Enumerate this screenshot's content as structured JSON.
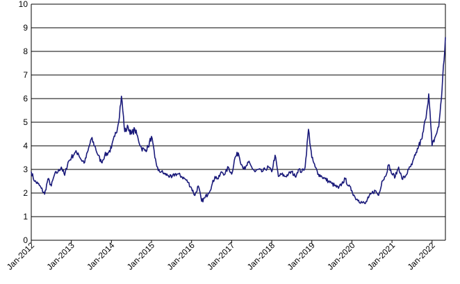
{
  "chart_data": {
    "type": "line",
    "title": "",
    "xlabel": "",
    "ylabel": "",
    "ylim": [
      0,
      10
    ],
    "yticks": [
      0,
      1,
      2,
      3,
      4,
      5,
      6,
      7,
      8,
      9,
      10
    ],
    "xlim": [
      "2012-01",
      "2022-05"
    ],
    "xticks": [
      "Jan-2012",
      "Jan-2013",
      "Jan-2014",
      "Jan-2015",
      "Jan-2016",
      "Jan-2017",
      "Jan-2018",
      "Jan-2019",
      "Jan-2020",
      "Jan-2021",
      "Jan-2022"
    ],
    "grid": "horizontal",
    "legend": "none",
    "colors": {
      "line": "#1a1a7a",
      "grid": "#000000",
      "axis": "#000000"
    },
    "series": [
      {
        "x": [
          "2012-01",
          "2012-02",
          "2012-03",
          "2012-04",
          "2012-05",
          "2012-06",
          "2012-07",
          "2012-08",
          "2012-09",
          "2012-10",
          "2012-11",
          "2012-12",
          "2013-01",
          "2013-02",
          "2013-03",
          "2013-04",
          "2013-05",
          "2013-06",
          "2013-07",
          "2013-08",
          "2013-09",
          "2013-10",
          "2013-11",
          "2013-12",
          "2014-01",
          "2014-02",
          "2014-03",
          "2014-04",
          "2014-05",
          "2014-06",
          "2014-07",
          "2014-08",
          "2014-09",
          "2014-10",
          "2014-11",
          "2014-12",
          "2015-01",
          "2015-02",
          "2015-03",
          "2015-04",
          "2015-05",
          "2015-06",
          "2015-07",
          "2015-08",
          "2015-09",
          "2015-10",
          "2015-11",
          "2015-12",
          "2016-01",
          "2016-02",
          "2016-03",
          "2016-04",
          "2016-05",
          "2016-06",
          "2016-07",
          "2016-08",
          "2016-09",
          "2016-10",
          "2016-11",
          "2016-12",
          "2017-01",
          "2017-02",
          "2017-03",
          "2017-04",
          "2017-05",
          "2017-06",
          "2017-07",
          "2017-08",
          "2017-09",
          "2017-10",
          "2017-11",
          "2017-12",
          "2018-01",
          "2018-02",
          "2018-03",
          "2018-04",
          "2018-05",
          "2018-06",
          "2018-07",
          "2018-08",
          "2018-09",
          "2018-10",
          "2018-11",
          "2018-12",
          "2019-01",
          "2019-02",
          "2019-03",
          "2019-04",
          "2019-05",
          "2019-06",
          "2019-07",
          "2019-08",
          "2019-09",
          "2019-10",
          "2019-11",
          "2019-12",
          "2020-01",
          "2020-02",
          "2020-03",
          "2020-04",
          "2020-05",
          "2020-06",
          "2020-07",
          "2020-08",
          "2020-09",
          "2020-10",
          "2020-11",
          "2020-12",
          "2021-01",
          "2021-02",
          "2021-03",
          "2021-04",
          "2021-05",
          "2021-06",
          "2021-07",
          "2021-08",
          "2021-09",
          "2021-10",
          "2021-11",
          "2021-12",
          "2022-01",
          "2022-02",
          "2022-03",
          "2022-04",
          "2022-05"
        ],
        "values": [
          2.9,
          2.5,
          2.4,
          2.2,
          1.95,
          2.6,
          2.3,
          2.8,
          2.9,
          3.1,
          2.75,
          3.3,
          3.5,
          3.7,
          3.7,
          3.4,
          3.3,
          3.8,
          4.3,
          4.0,
          3.6,
          3.3,
          3.6,
          3.7,
          3.9,
          4.4,
          4.9,
          6.1,
          4.6,
          4.8,
          4.5,
          4.7,
          4.3,
          3.9,
          3.8,
          3.95,
          4.4,
          3.5,
          2.95,
          2.9,
          2.8,
          2.75,
          2.65,
          2.8,
          2.8,
          2.7,
          2.6,
          2.45,
          2.2,
          1.9,
          2.3,
          1.65,
          1.8,
          2.0,
          2.3,
          2.7,
          2.6,
          2.9,
          2.8,
          3.1,
          2.8,
          3.5,
          3.7,
          3.2,
          3.0,
          3.3,
          3.1,
          2.9,
          3.0,
          2.9,
          3.0,
          3.1,
          2.9,
          3.6,
          2.7,
          2.8,
          2.7,
          2.8,
          2.9,
          2.7,
          3.0,
          2.9,
          3.1,
          4.7,
          3.5,
          3.1,
          2.8,
          2.7,
          2.6,
          2.5,
          2.4,
          2.3,
          2.2,
          2.4,
          2.6,
          2.3,
          2.1,
          1.8,
          1.7,
          1.6,
          1.55,
          1.8,
          2.0,
          2.1,
          1.9,
          2.5,
          2.7,
          3.2,
          2.8,
          2.7,
          3.1,
          2.6,
          2.7,
          3.0,
          3.2,
          3.6,
          4.0,
          4.3,
          5.1,
          6.2,
          4.0,
          4.4,
          4.8,
          6.4,
          8.6
        ]
      }
    ]
  }
}
